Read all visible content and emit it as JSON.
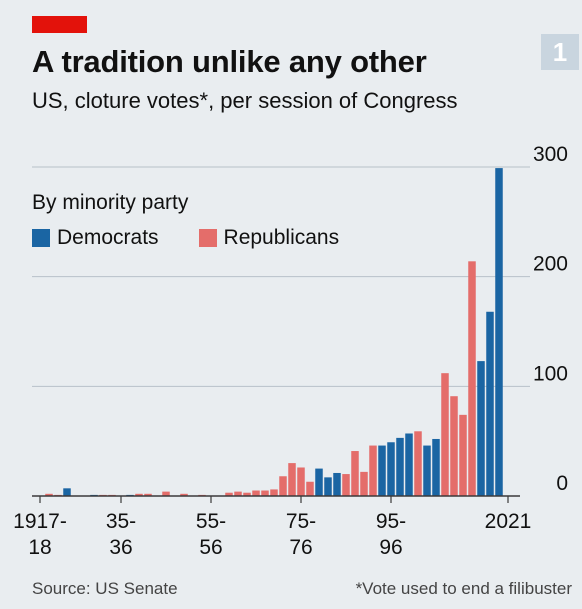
{
  "header": {
    "badge": "1",
    "title": "A tradition unlike any other",
    "subtitle": "US, cloture votes*, per session of Congress"
  },
  "legend": {
    "title": "By minority party",
    "democrats_label": "Democrats",
    "republicans_label": "Republicans"
  },
  "footer": {
    "source": "Source: US Senate",
    "note": "*Vote used to end a filibuster"
  },
  "colors": {
    "democrats": "#1a65a3",
    "republicans": "#e46d6a",
    "brand_red": "#e3120b",
    "grid": "#b7c1c9"
  },
  "chart_data": {
    "type": "bar",
    "ylim": [
      0,
      300
    ],
    "yticks": [
      0,
      100,
      200,
      300
    ],
    "ytick_labels": [
      "0",
      "100",
      "200",
      "300"
    ],
    "y_axis_position": "right",
    "grid": true,
    "legend_placement": "top-left",
    "xtick_labels": [
      {
        "session": 1,
        "label": "1917-\n18"
      },
      {
        "session": 10,
        "label": "35-\n36"
      },
      {
        "session": 20,
        "label": "55-\n56"
      },
      {
        "session": 30,
        "label": "75-\n76"
      },
      {
        "session": 40,
        "label": "95-\n96"
      },
      {
        "session": 53,
        "label": "2021"
      }
    ],
    "series": [
      {
        "name": "Democrats",
        "color": "#1a65a3",
        "points": [
          [
            4,
            7
          ],
          [
            7,
            1
          ],
          [
            11,
            1
          ],
          [
            32,
            25
          ],
          [
            33,
            17
          ],
          [
            34,
            21
          ],
          [
            39,
            46
          ],
          [
            40,
            49
          ],
          [
            41,
            53
          ],
          [
            42,
            57
          ],
          [
            44,
            46
          ],
          [
            45,
            52
          ],
          [
            50,
            123
          ],
          [
            51,
            168
          ],
          [
            52,
            299
          ]
        ]
      },
      {
        "name": "Republicans",
        "color": "#e46d6a",
        "points": [
          [
            2,
            2
          ],
          [
            3,
            1
          ],
          [
            8,
            1
          ],
          [
            9,
            1
          ],
          [
            12,
            2
          ],
          [
            13,
            2
          ],
          [
            15,
            4
          ],
          [
            17,
            2
          ],
          [
            19,
            1
          ],
          [
            22,
            3
          ],
          [
            23,
            4
          ],
          [
            24,
            3
          ],
          [
            25,
            5
          ],
          [
            26,
            5
          ],
          [
            27,
            6
          ],
          [
            28,
            18
          ],
          [
            29,
            30
          ],
          [
            30,
            26
          ],
          [
            31,
            13
          ],
          [
            35,
            20
          ],
          [
            36,
            41
          ],
          [
            37,
            22
          ],
          [
            38,
            46
          ],
          [
            43,
            59
          ],
          [
            46,
            112
          ],
          [
            47,
            91
          ],
          [
            48,
            74
          ],
          [
            49,
            214
          ]
        ]
      }
    ]
  }
}
